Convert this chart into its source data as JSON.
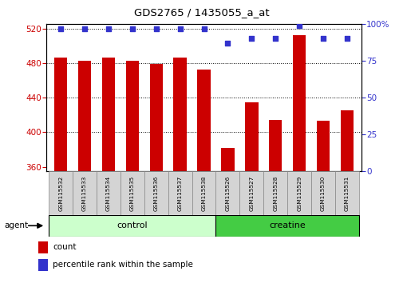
{
  "title": "GDS2765 / 1435055_a_at",
  "samples": [
    "GSM115532",
    "GSM115533",
    "GSM115534",
    "GSM115535",
    "GSM115536",
    "GSM115537",
    "GSM115538",
    "GSM115526",
    "GSM115527",
    "GSM115528",
    "GSM115529",
    "GSM115530",
    "GSM115531"
  ],
  "counts": [
    486,
    483,
    486,
    483,
    479,
    486,
    472,
    382,
    435,
    414,
    512,
    413,
    425
  ],
  "percentile_ranks": [
    97,
    97,
    97,
    97,
    97,
    97,
    97,
    87,
    90,
    90,
    99,
    90,
    90
  ],
  "ylim_left": [
    355,
    525
  ],
  "ylim_right": [
    0,
    100
  ],
  "yticks_left": [
    360,
    400,
    440,
    480,
    520
  ],
  "yticks_right": [
    0,
    25,
    50,
    75,
    100
  ],
  "bar_color": "#cc0000",
  "dot_color": "#3333cc",
  "control_color": "#ccffcc",
  "creatine_color": "#44cc44",
  "sample_box_color": "#d4d4d4",
  "bar_bottom": 355,
  "left_axis_color": "#cc0000",
  "right_axis_color": "#3333cc",
  "n_control": 7,
  "n_creatine": 6
}
